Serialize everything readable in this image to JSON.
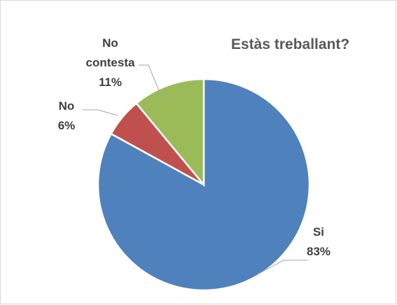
{
  "chart_data": {
    "type": "pie",
    "title": "Estàs treballant?",
    "categories": [
      "Si",
      "No",
      "No contesta"
    ],
    "values": [
      83,
      6,
      11
    ],
    "value_labels": [
      "83%",
      "6%",
      "11%"
    ],
    "colors": [
      "#4f81bd",
      "#c0504d",
      "#9bbb59"
    ]
  }
}
